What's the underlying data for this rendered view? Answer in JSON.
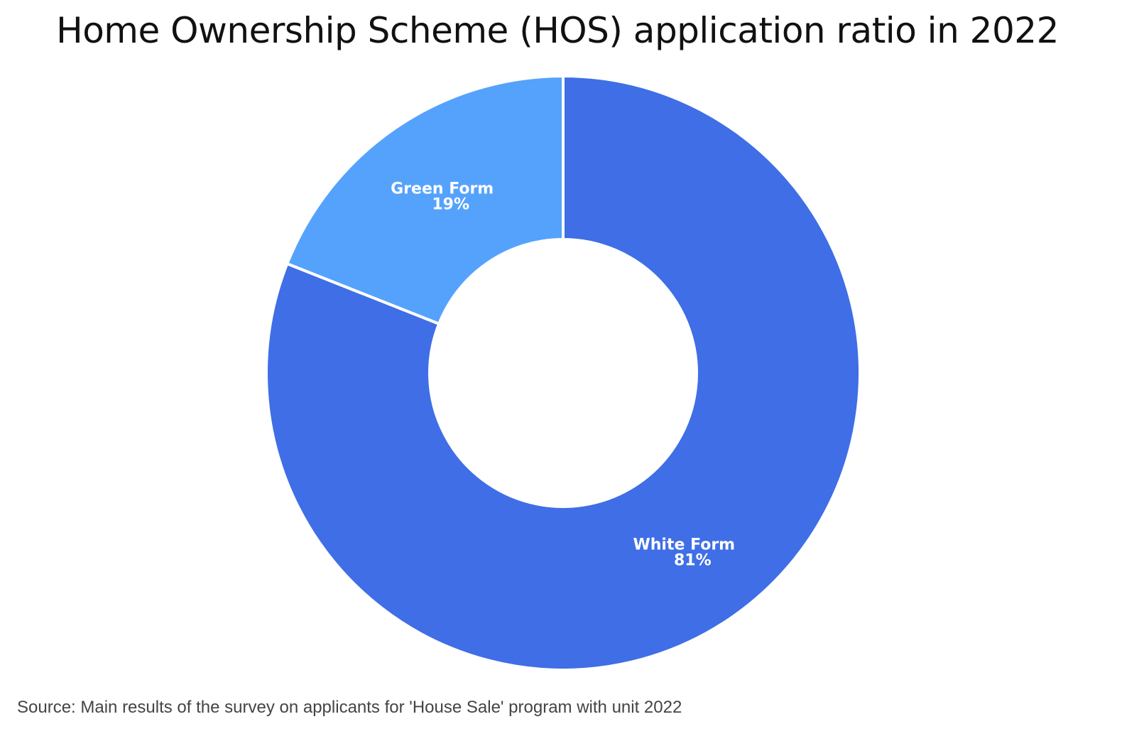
{
  "chart_data": {
    "type": "pie",
    "variant": "donut",
    "title": "Home Ownership Scheme (HOS) application ratio in 2022",
    "source": "Source: Main results of the survey on applicants for 'House Sale' program with unit 2022",
    "slices": [
      {
        "label": "White Form",
        "value": 81,
        "value_label": "81%",
        "color": "#3f6ee6"
      },
      {
        "label": "Green Form",
        "value": 19,
        "value_label": "19%",
        "color": "#55a2fc"
      }
    ],
    "legend": "none"
  }
}
